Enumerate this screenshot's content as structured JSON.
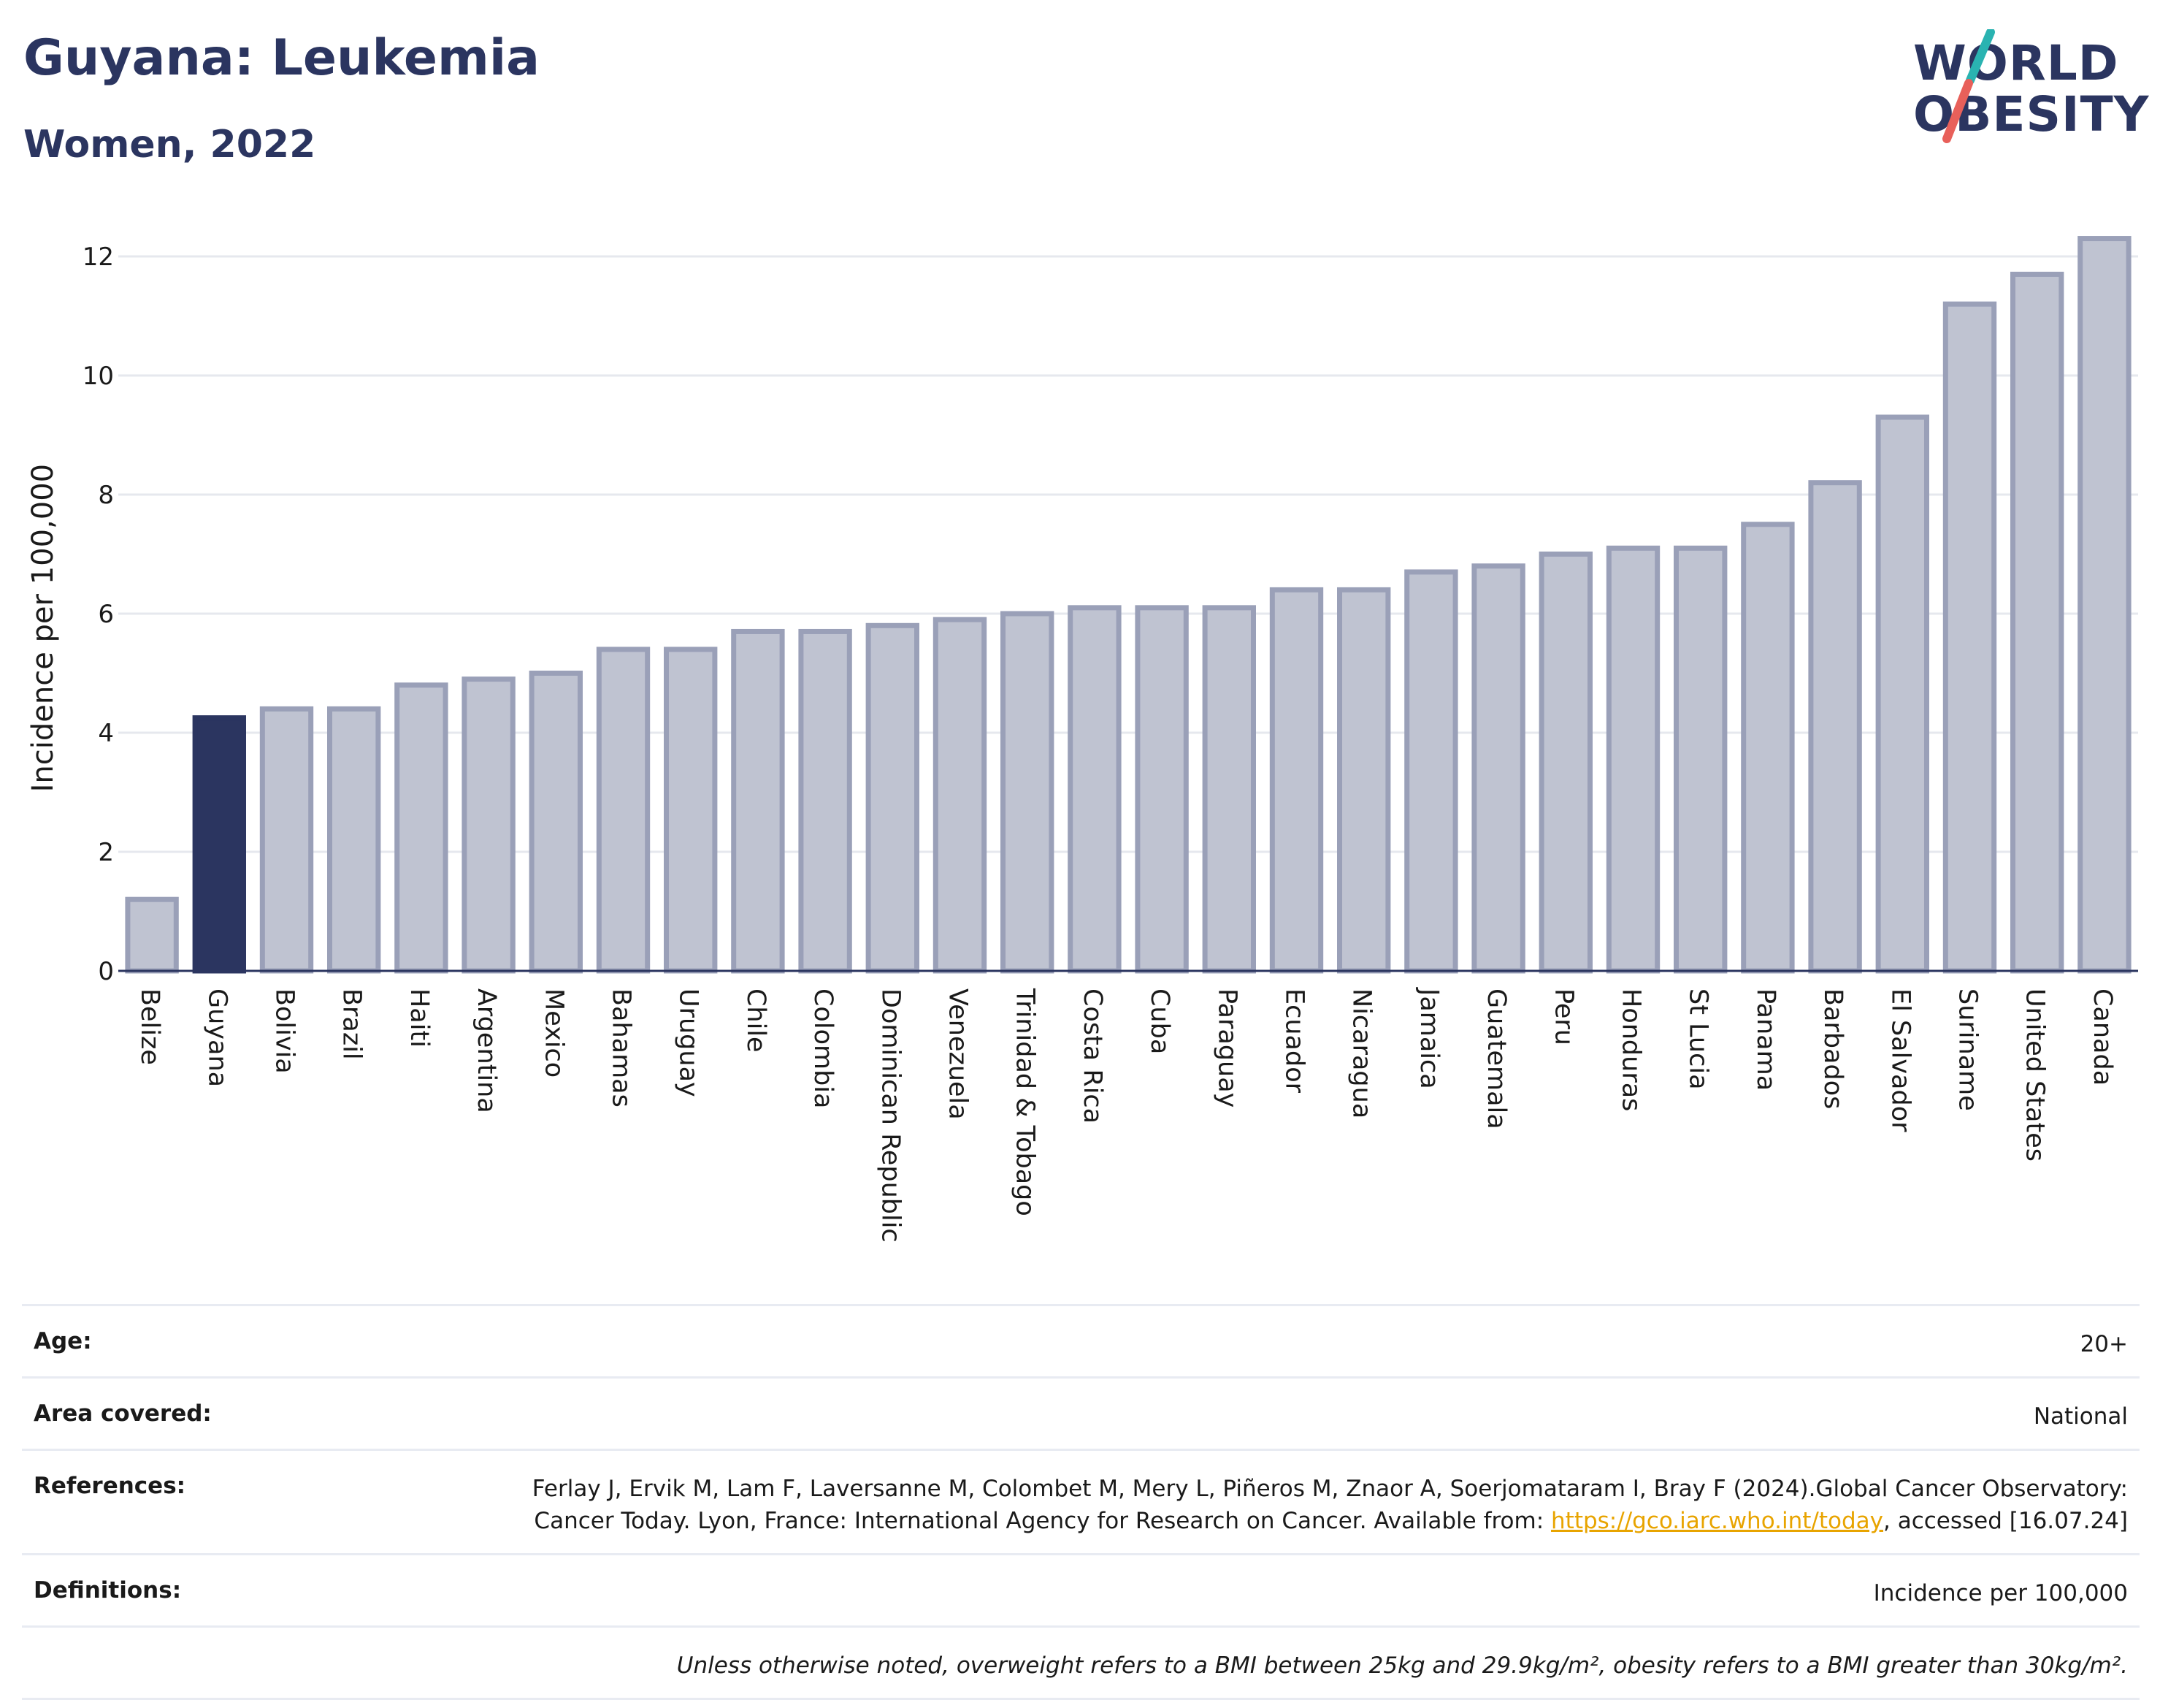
{
  "header": {
    "title": "Guyana: Leukemia",
    "subtitle": "Women, 2022"
  },
  "logo": {
    "line1": "WORLD",
    "line2": "OBESITY",
    "text_color": "#2b3560",
    "slash_teal": "#2ab3b1",
    "slash_coral": "#e8605a"
  },
  "chart_data": {
    "type": "bar",
    "title": "",
    "xlabel": "",
    "ylabel": "Incidence per 100,000",
    "ylim": [
      0,
      12.5
    ],
    "yticks": [
      0,
      2,
      4,
      6,
      8,
      10,
      12
    ],
    "grid": true,
    "highlight_category": "Guyana",
    "colors": {
      "highlight": "#2b3560",
      "bar_fill": "#bfc3d1",
      "bar_stroke": "#9aa0b8",
      "grid": "#e6e8ee",
      "axis": "#2b3560"
    },
    "categories": [
      "Belize",
      "Guyana",
      "Bolivia",
      "Brazil",
      "Haiti",
      "Argentina",
      "Mexico",
      "Bahamas",
      "Uruguay",
      "Chile",
      "Colombia",
      "Dominican Republic",
      "Venezuela",
      "Trinidad & Tobago",
      "Costa Rica",
      "Cuba",
      "Paraguay",
      "Ecuador",
      "Nicaragua",
      "Jamaica",
      "Guatemala",
      "Peru",
      "Honduras",
      "St Lucia",
      "Panama",
      "Barbados",
      "El Salvador",
      "Suriname",
      "United States",
      "Canada"
    ],
    "values": [
      1.2,
      4.25,
      4.4,
      4.4,
      4.8,
      4.9,
      5.0,
      5.4,
      5.4,
      5.7,
      5.7,
      5.8,
      5.9,
      6.0,
      6.1,
      6.1,
      6.1,
      6.4,
      6.4,
      6.7,
      6.8,
      7.0,
      7.1,
      7.1,
      7.5,
      8.2,
      9.3,
      11.2,
      11.7,
      12.3
    ]
  },
  "info": [
    {
      "label": "Age:",
      "value": "20+"
    },
    {
      "label": "Area covered:",
      "value": "National"
    },
    {
      "label": "References:",
      "value_pre": "Ferlay J, Ervik M, Lam F, Laversanne M, Colombet M, Mery L, Piñeros M, Znaor A, Soerjomataram I, Bray F (2024).Global Cancer Observatory: Cancer Today. Lyon, France: International Agency for Research on Cancer. Available from: ",
      "link": "https://gco.iarc.who.int/today",
      "value_post": ", accessed [16.07.24]"
    },
    {
      "label": "Definitions:",
      "value": "Incidence per 100,000"
    },
    {
      "label": "",
      "value": "Unless otherwise noted, overweight refers to a BMI between 25kg and 29.9kg/m², obesity refers to a BMI greater than 30kg/m²."
    }
  ]
}
